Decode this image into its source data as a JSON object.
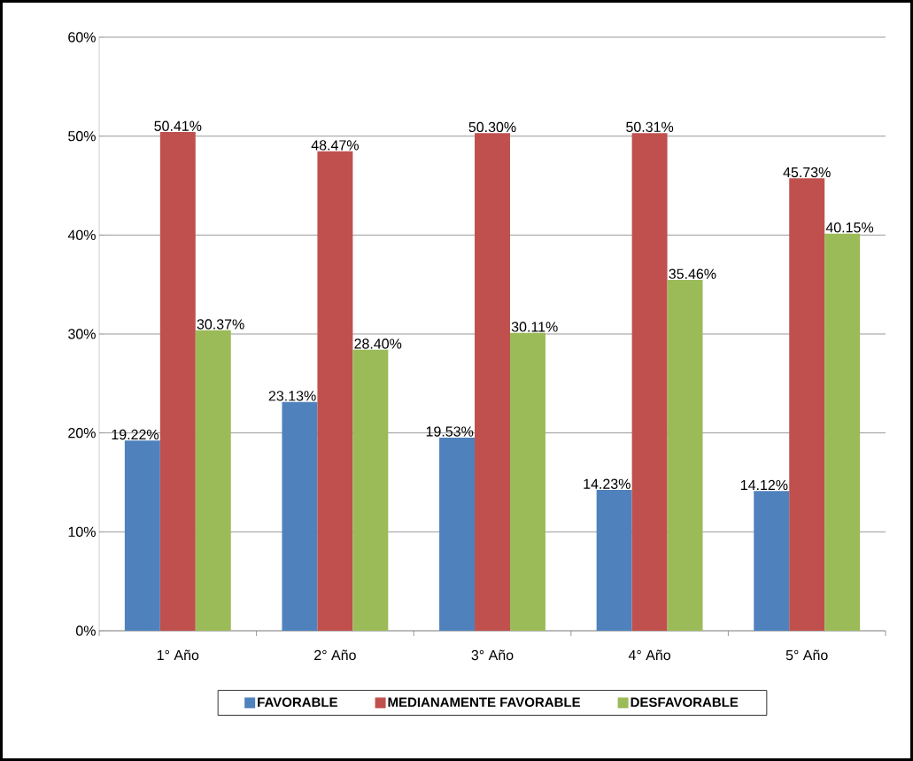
{
  "chart_data": {
    "type": "bar",
    "categories": [
      "1° Año",
      "2° Año",
      "3° Año",
      "4° Año",
      "5° Año"
    ],
    "series": [
      {
        "name": "FAVORABLE",
        "color": "#4f81bd",
        "values": [
          19.22,
          23.13,
          19.53,
          14.23,
          14.12
        ],
        "value_labels": [
          "19.22%",
          "23.13%",
          "19.53%",
          "14.23%",
          "14.12%"
        ]
      },
      {
        "name": "MEDIANAMENTE FAVORABLE",
        "color": "#c0504d",
        "values": [
          50.41,
          48.47,
          50.3,
          50.31,
          45.73
        ],
        "value_labels": [
          "50.41%",
          "48.47%",
          "50.30%",
          "50.31%",
          "45.73%"
        ]
      },
      {
        "name": "DESFAVORABLE",
        "color": "#9bbb59",
        "values": [
          30.37,
          28.4,
          30.11,
          35.46,
          40.15
        ],
        "value_labels": [
          "30.37%",
          "28.40%",
          "30.11%",
          "35.46%",
          "40.15%"
        ]
      }
    ],
    "ylim": [
      0,
      60
    ],
    "yticks": [
      {
        "value": 0,
        "label": "0%"
      },
      {
        "value": 10,
        "label": "10%"
      },
      {
        "value": 20,
        "label": "20%"
      },
      {
        "value": 30,
        "label": "30%"
      },
      {
        "value": 40,
        "label": "40%"
      },
      {
        "value": 50,
        "label": "50%"
      },
      {
        "value": 60,
        "label": "60%"
      }
    ],
    "grid": "y",
    "legend": "bottom"
  }
}
